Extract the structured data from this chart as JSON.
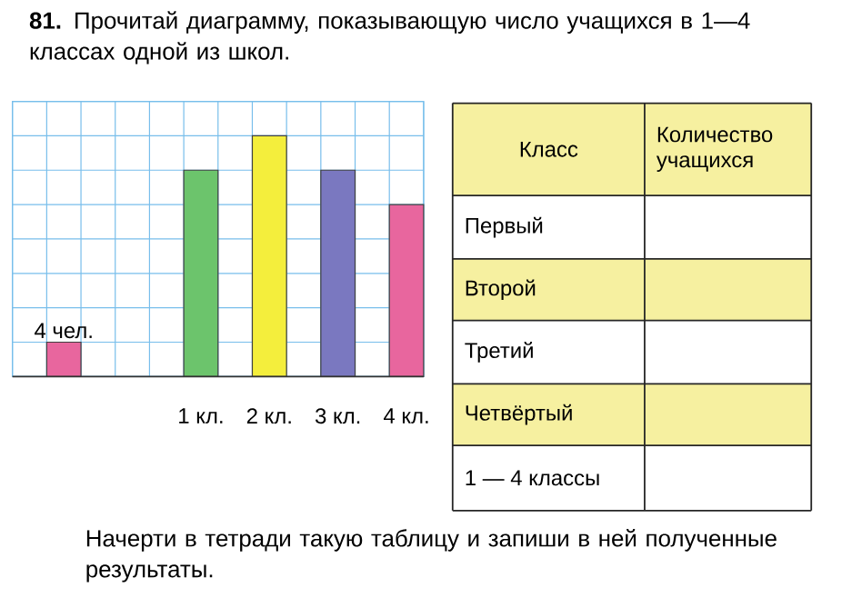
{
  "chart_data": {
    "type": "bar",
    "title": "**81.** Прочитай диаграмму, показывающую число учащихся в 1—4 классах одной из школ.",
    "categories": [
      null,
      null,
      "1 кл.",
      "2 кл.",
      "3 кл.",
      "4 кл."
    ],
    "values": [
      4,
      null,
      24,
      28,
      24,
      20
    ],
    "value_labels": [
      "4 чел.",
      null,
      null,
      null,
      null,
      null
    ],
    "colors": [
      "#e8669e",
      "#ffffff",
      "#6cc46c",
      "#f4ee3c",
      "#7a78c0",
      "#e8669e"
    ],
    "ylim": [
      0,
      32
    ],
    "yticks": [
      {
        "value": 0,
        "label": null
      },
      {
        "value": 4,
        "label": null
      },
      {
        "value": 8,
        "label": null
      },
      {
        "value": 12,
        "label": null
      },
      {
        "value": 16,
        "label": null
      },
      {
        "value": 20,
        "label": null
      },
      {
        "value": 24,
        "label": null
      },
      {
        "value": 28,
        "label": null
      },
      {
        "value": 32,
        "label": null
      }
    ],
    "grid": true,
    "annotations": [
      "Класс",
      "Количество учащихся",
      "Первый",
      "Второй",
      "Третий",
      "Четвёртый",
      "1 — 4 классы",
      "Начерти в тетради такую таблицу и запиши в ней полученные результаты."
    ]
  }
}
